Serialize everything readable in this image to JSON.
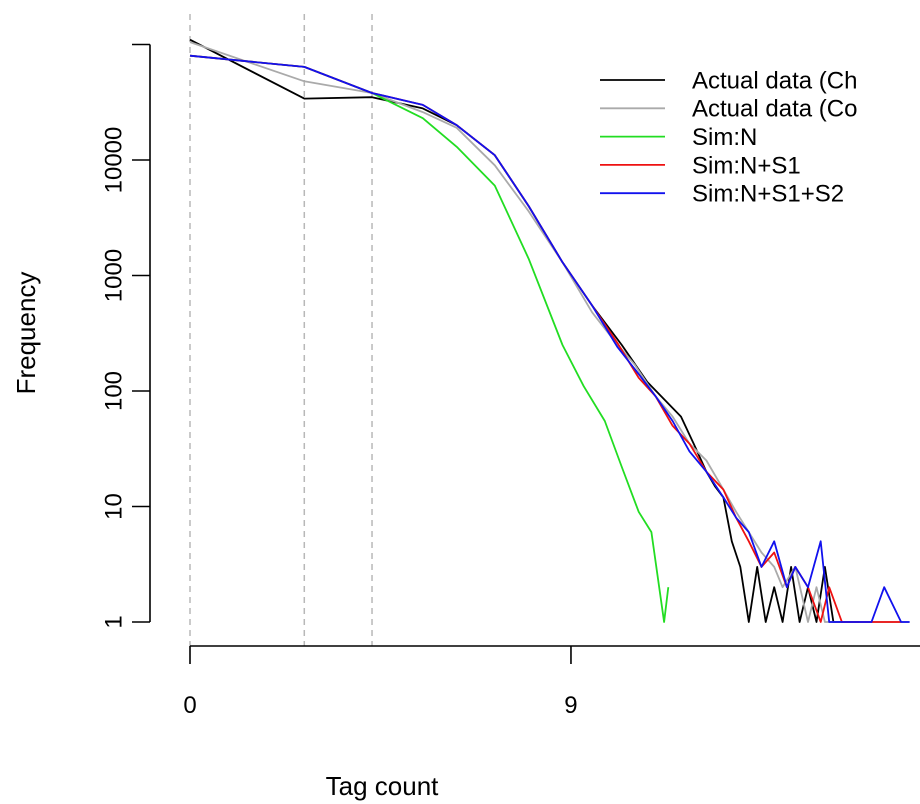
{
  "chart_data": {
    "type": "line",
    "title": "",
    "xlabel": "Tag count",
    "ylabel": "Frequency",
    "y_scale": "log",
    "xlim": [
      0,
      17
    ],
    "ylim": [
      1,
      100000
    ],
    "x_ticks": [
      {
        "value": 0,
        "label": "0"
      },
      {
        "value": 9,
        "label": "9"
      }
    ],
    "y_ticks": [
      {
        "value": 1,
        "label": "1"
      },
      {
        "value": 10,
        "label": "10"
      },
      {
        "value": 100,
        "label": "100"
      },
      {
        "value": 1000,
        "label": "1000"
      },
      {
        "value": 10000,
        "label": "10000"
      },
      {
        "value": 100000,
        "label": ""
      }
    ],
    "vertical_reference_lines": [
      0,
      2.7,
      4.3
    ],
    "legend_placement": "top-right",
    "grid": false,
    "series": [
      {
        "name": "Actual data (Ch",
        "color": "#000000",
        "x": [
          0,
          2.7,
          4.3,
          5.5,
          6.3,
          7.2,
          8.0,
          8.8,
          9.5,
          10.2,
          10.8,
          11.2,
          11.6,
          11.9,
          12.2,
          12.4,
          12.6,
          12.8,
          13.0,
          13.2,
          13.4,
          13.6,
          13.8,
          14.0,
          14.2,
          14.4,
          14.6,
          14.8,
          15.0,
          15.2,
          15.4,
          15.6,
          15.8
        ],
        "y": [
          110000,
          34000,
          35000,
          28000,
          20000,
          11000,
          4000,
          1300,
          550,
          250,
          120,
          85,
          60,
          35,
          20,
          15,
          12,
          5,
          3,
          1,
          3,
          1,
          2,
          1,
          3,
          1,
          2,
          1,
          3,
          1,
          1,
          1,
          1
        ]
      },
      {
        "name": "Actual data (Co",
        "color": "#aaaaaa",
        "x": [
          0,
          2.7,
          4.3,
          5.5,
          6.3,
          7.2,
          8.0,
          8.8,
          9.5,
          10.0,
          10.5,
          11.0,
          11.4,
          11.8,
          12.2,
          12.6,
          12.9,
          13.2,
          13.5,
          13.8,
          14.0,
          14.3,
          14.6,
          14.8,
          15.0,
          15.3,
          15.6,
          16.0,
          16.4,
          16.8,
          17.0
        ],
        "y": [
          105000,
          48000,
          38000,
          26000,
          19000,
          9000,
          3600,
          1300,
          480,
          280,
          170,
          90,
          60,
          35,
          25,
          14,
          9,
          6,
          4,
          3,
          2,
          3,
          1,
          2,
          1,
          1,
          1,
          1,
          1,
          1,
          1
        ]
      },
      {
        "name": "Sim:N",
        "color": "#22dd22",
        "x": [
          0,
          2.7,
          4.3,
          5.5,
          6.3,
          7.2,
          8.0,
          8.8,
          9.3,
          9.8,
          10.2,
          10.6,
          10.9,
          11.2,
          11.3
        ],
        "y": [
          80000,
          64000,
          38000,
          23000,
          13000,
          6000,
          1400,
          250,
          110,
          55,
          22,
          9,
          6,
          1,
          2
        ]
      },
      {
        "name": "Sim:N+S1",
        "color": "#ee1111",
        "x": [
          0,
          2.7,
          4.3,
          5.5,
          6.3,
          7.2,
          8.0,
          8.8,
          9.5,
          10.1,
          10.6,
          11.0,
          11.4,
          11.8,
          12.2,
          12.6,
          12.9,
          13.2,
          13.5,
          13.8,
          14.1,
          14.3,
          14.6,
          14.9,
          15.1,
          15.4,
          15.7,
          16.0,
          16.5,
          16.8
        ],
        "y": [
          80000,
          64000,
          38000,
          30000,
          20000,
          11000,
          4000,
          1300,
          550,
          260,
          130,
          90,
          50,
          35,
          20,
          14,
          8,
          5,
          3,
          4,
          2,
          3,
          2,
          1,
          2,
          1,
          1,
          1,
          1,
          1
        ]
      },
      {
        "name": "Sim:N+S1+S2",
        "color": "#1111ee",
        "x": [
          0,
          2.7,
          4.3,
          5.5,
          6.3,
          7.2,
          8.0,
          8.8,
          9.5,
          10.1,
          10.6,
          11.0,
          11.4,
          11.8,
          12.2,
          12.6,
          12.9,
          13.2,
          13.5,
          13.8,
          14.1,
          14.3,
          14.6,
          14.9,
          15.1,
          15.4,
          15.7,
          16.1,
          16.4,
          16.8,
          17.0
        ],
        "y": [
          80000,
          64000,
          38000,
          30000,
          20000,
          11000,
          4000,
          1300,
          550,
          240,
          140,
          90,
          55,
          30,
          20,
          12,
          8,
          6,
          3,
          5,
          2,
          3,
          2,
          5,
          1,
          1,
          1,
          1,
          2,
          1,
          1
        ]
      }
    ]
  }
}
